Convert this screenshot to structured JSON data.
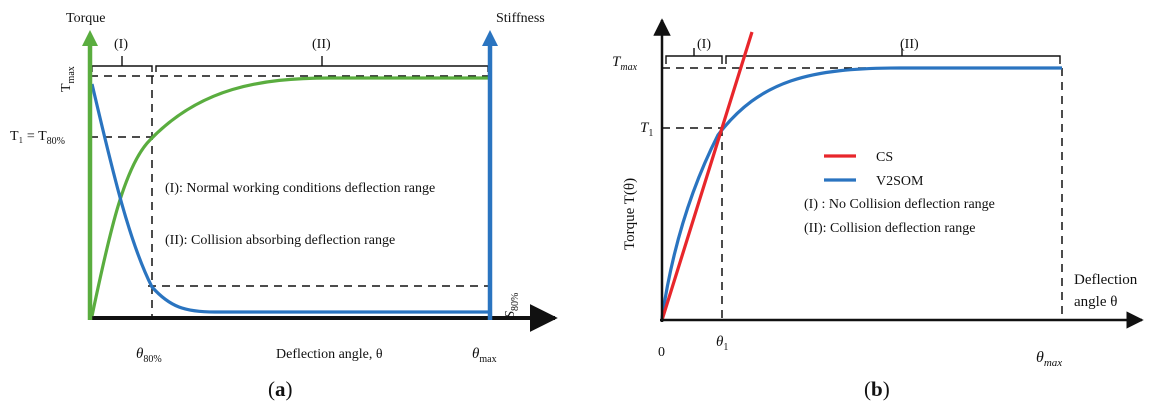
{
  "panel_a": {
    "caption": "(a)",
    "y_left_label": "Torque",
    "y_right_label": "Stiffness",
    "range_1": "(I)",
    "range_2": "(II)",
    "tmax_label": "T",
    "tmax_sub": "max",
    "t1_label": "T₁ = T",
    "t1_sub": "80%",
    "legend_1": "(I): Normal working conditions deflection range",
    "legend_2": "(II): Collision  absorbing deflection range",
    "s80_label": "S",
    "s80_sub": "80%",
    "theta80_label": "θ",
    "theta80_sub": "80%",
    "x_label": "Deflection angle, θ",
    "thetamax_label": "θ",
    "thetamax_sub": "max",
    "colors": {
      "torque": "#5aad3f",
      "stiffness": "#2a74c0"
    }
  },
  "panel_b": {
    "caption": "(b)",
    "range_1": "(I)",
    "range_2": "(II)",
    "tmax_label": "T",
    "tmax_sub": "max",
    "t1_label": "T",
    "t1_sub": "1",
    "y_label": "Torque  T(θ)",
    "legend_cs": "CS",
    "legend_v2som": "V2SOM",
    "note_1": "(I) : No Collision deflection range",
    "note_2": "(II): Collision deflection range",
    "x_label_1": "Deflection",
    "x_label_2": "angle θ",
    "origin": "0",
    "theta1_label": "θ",
    "theta1_sub": "1",
    "thetamax_label": "θ",
    "thetamax_sub": "max",
    "colors": {
      "cs": "#e8262b",
      "v2som": "#2a74c0"
    }
  }
}
